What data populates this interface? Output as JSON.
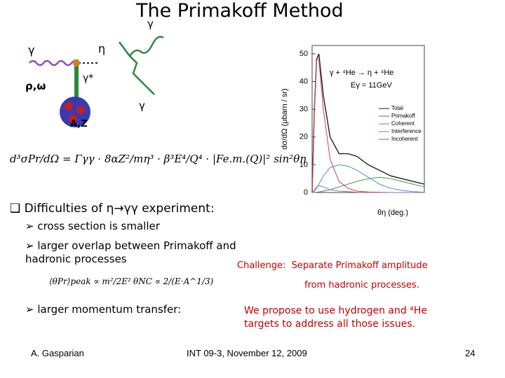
{
  "title": "The Primakoff Method",
  "diagram": {
    "labels": [
      "γ",
      "η",
      "γ",
      "γ*",
      "ρ,ω",
      "A,Z",
      "γ"
    ]
  },
  "formula": "d³σPr/dΩ = Γγγ · 8αZ²/mη³ · β³E⁴/Q⁴ · |Fe.m.(Q)|² sin²θη",
  "bullets": {
    "heading": "Difficulties of η→γγ experiment:",
    "items": [
      "cross section is smaller",
      "larger overlap between Primakoff and hadronic processes",
      "larger momentum transfer:"
    ],
    "formulas": [
      "⟨θPr⟩peak ∝ m²/2E²",
      "θNC ∝ 2/(E·A^1/3)"
    ]
  },
  "challenge": {
    "label": "Challenge:",
    "text": "Separate Primakoff amplitude",
    "text2": "from hadronic processes."
  },
  "proposal": [
    "We propose to use hydrogen and ⁴He",
    "targets to address all those issues."
  ],
  "footer": {
    "author": "A. Gasparian",
    "event": "INT 09-3, November 12, 2009",
    "page": "24"
  },
  "chart_data": {
    "type": "line",
    "ylabel": "dσ/dΩ (μbarn / sr)",
    "xlabel": "θη (deg.)",
    "annotations": [
      "γ + ⁴He → η + ⁴He",
      "Eγ = 11GeV"
    ],
    "x": [
      0,
      0.1,
      0.2,
      0.3,
      0.5,
      0.8,
      1.2,
      1.6,
      2.0,
      2.5,
      3.0,
      3.5,
      4.0,
      4.5,
      5.0
    ],
    "xlim": [
      0,
      5
    ],
    "ylim": [
      0,
      53
    ],
    "yticks": [
      0,
      10,
      20,
      30,
      40,
      50
    ],
    "series": [
      {
        "name": "Total",
        "color": "#222222",
        "values": [
          0,
          30,
          48,
          50,
          35,
          20,
          14,
          14,
          13,
          10,
          8,
          6,
          5,
          4,
          3
        ]
      },
      {
        "name": "Primakoff",
        "color": "#d04040",
        "values": [
          0,
          30,
          48,
          48,
          30,
          12,
          4,
          1.5,
          0.5,
          0.2,
          0.1,
          0,
          0,
          0,
          0
        ]
      },
      {
        "name": "Coherent",
        "color": "#4a8fd0",
        "values": [
          0,
          0.5,
          1.5,
          3,
          6,
          9,
          10,
          9.5,
          8,
          5.5,
          3,
          1.5,
          0.8,
          0.3,
          0.1
        ]
      },
      {
        "name": "Interference",
        "color": "#9a6ac0",
        "values": [
          0,
          1,
          2,
          2.5,
          2,
          1,
          0.5,
          0.3,
          0.1,
          0,
          0,
          0,
          0,
          0,
          0
        ]
      },
      {
        "name": "Incoherent",
        "color": "#3a9a3a",
        "values": [
          0,
          0,
          0.1,
          0.2,
          0.5,
          1,
          2,
          3,
          4,
          5,
          5.5,
          5,
          4,
          3,
          2
        ]
      }
    ]
  }
}
